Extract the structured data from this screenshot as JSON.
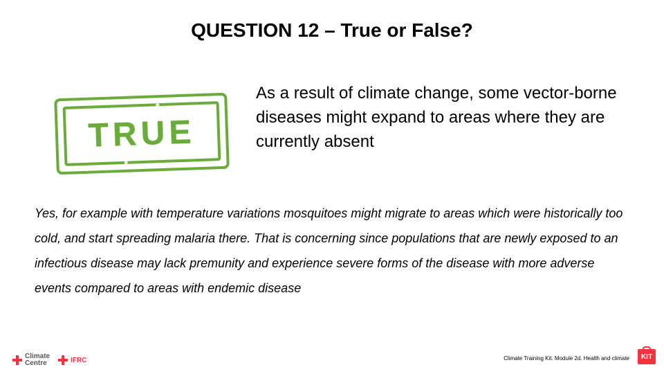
{
  "title": "QUESTION 12 – True or False?",
  "stamp": {
    "text": "TRUE",
    "color": "#6aac3a"
  },
  "question": "As a result of climate change, some vector-borne diseases might expand to areas where they are currently absent",
  "answer": "Yes, for example with temperature variations mosquitoes might migrate to areas which were historically too cold, and start spreading malaria there. That is concerning since populations that are newly exposed to an infectious disease may lack premunity and experience severe forms of the disease with more adverse events compared to areas with endemic disease",
  "footer": {
    "climate_centre_line1": "Climate",
    "climate_centre_line2": "Centre",
    "ifrc": "IFRC",
    "module_text": "Climate Training Kit. Module 2d. Health and climate",
    "kit_label": "KIT"
  },
  "colors": {
    "accent_red": "#f5333f",
    "stamp_green": "#6aac3a",
    "text": "#000000",
    "background": "#ffffff"
  },
  "typography": {
    "title_fontsize": 28,
    "question_fontsize": 24,
    "answer_fontsize": 18,
    "footer_small_fontsize": 8
  }
}
